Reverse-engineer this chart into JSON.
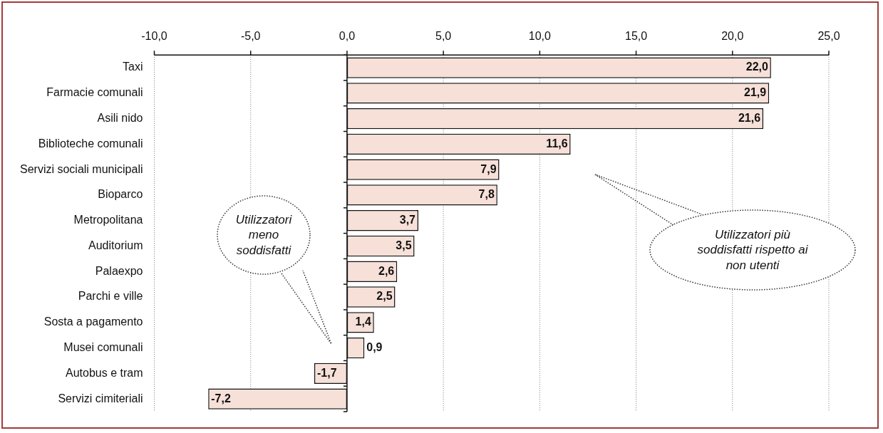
{
  "chart_data": {
    "type": "bar",
    "orientation": "horizontal",
    "categories": [
      "Taxi",
      "Farmacie comunali",
      "Asili nido",
      "Biblioteche comunali",
      "Servizi sociali municipali",
      "Bioparco",
      "Metropolitana",
      "Auditorium",
      "Palaexpo",
      "Parchi e ville",
      "Sosta a pagamento",
      "Musei comunali",
      "Autobus e tram",
      "Servizi cimiteriali"
    ],
    "values": [
      22.0,
      21.9,
      21.6,
      11.6,
      7.9,
      7.8,
      3.7,
      3.5,
      2.6,
      2.5,
      1.4,
      0.9,
      -1.7,
      -7.2
    ],
    "value_labels": [
      "22,0",
      "21,9",
      "21,6",
      "11,6",
      "7,9",
      "7,8",
      "3,7",
      "3,5",
      "2,6",
      "2,5",
      "1,4",
      "0,9",
      "-1,7",
      "-7,2"
    ],
    "color": "#f6e0d8",
    "xlim": [
      -10,
      25
    ],
    "xticks": [
      {
        "value": -10,
        "label": "-10,0"
      },
      {
        "value": -5,
        "label": "-5,0"
      },
      {
        "value": 0,
        "label": "0,0"
      },
      {
        "value": 5,
        "label": "5,0"
      },
      {
        "value": 10,
        "label": "10,0"
      },
      {
        "value": 15,
        "label": "15,0"
      },
      {
        "value": 20,
        "label": "20,0"
      },
      {
        "value": 25,
        "label": "25,0"
      }
    ],
    "grid": "x",
    "legend": false,
    "annotations": [
      "Utilizzatori meno soddisfatti",
      "Utilizzatori più soddisfatti rispetto ai non utenti"
    ]
  }
}
